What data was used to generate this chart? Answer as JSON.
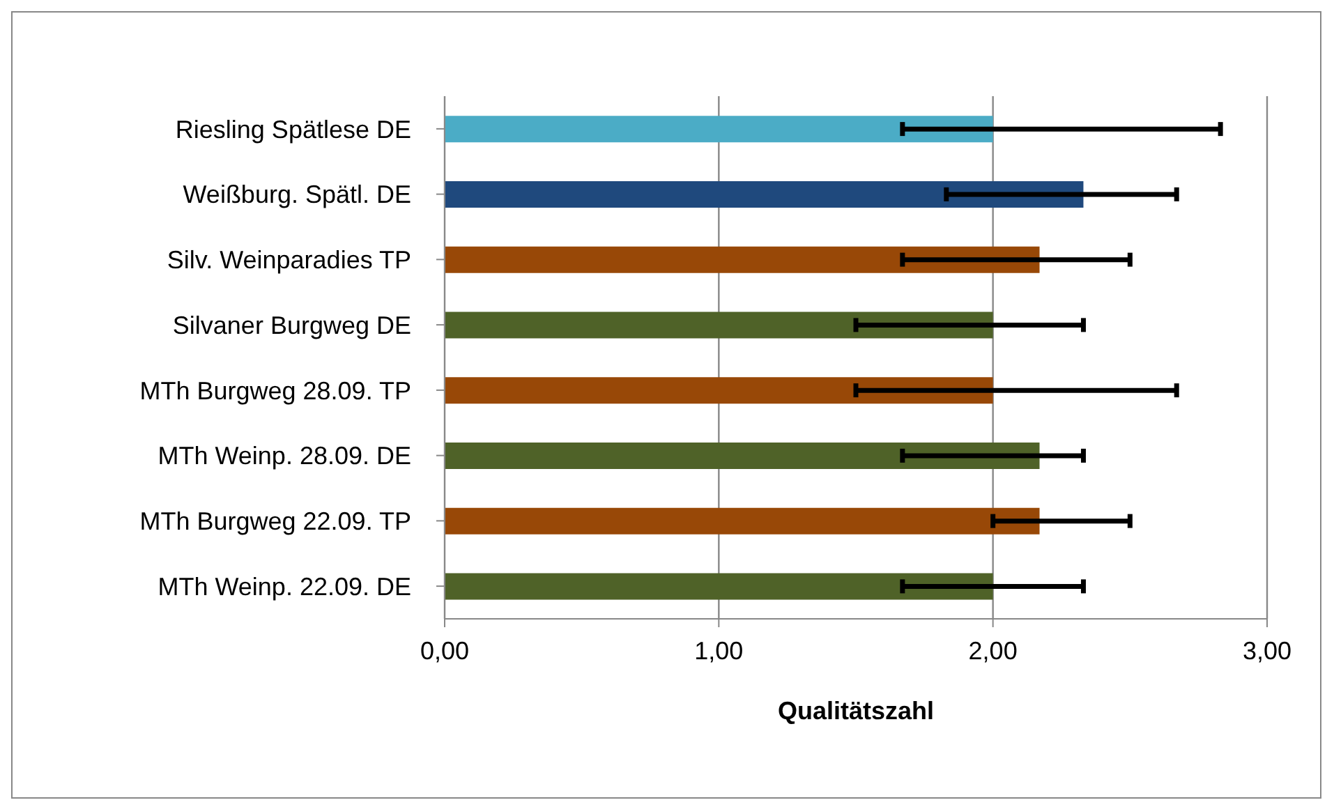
{
  "chart_data": {
    "type": "bar",
    "orientation": "horizontal",
    "xlabel": "Qualitätszahl",
    "categories": [
      "Riesling Spätlese DE",
      "Weißburg. Spätl.  DE",
      "Silv. Weinparadies TP",
      "Silvaner  Burgweg  DE",
      "MTh Burgweg 28.09. TP",
      "MTh Weinp.  28.09.  DE",
      "MTh Burgweg 22.09. TP",
      "MTh Weinp.   22.09. DE"
    ],
    "values": [
      2.0,
      2.33,
      2.17,
      2.0,
      2.0,
      2.17,
      2.17,
      2.0
    ],
    "colors": [
      "#4bacc6",
      "#1f497d",
      "#984807",
      "#4f6228",
      "#984807",
      "#4f6228",
      "#984807",
      "#4f6228"
    ],
    "errors": [
      [
        1.67,
        2.83
      ],
      [
        1.83,
        2.67
      ],
      [
        1.67,
        2.5
      ],
      [
        1.5,
        2.33
      ],
      [
        1.5,
        2.67
      ],
      [
        1.67,
        2.33
      ],
      [
        2.0,
        2.5
      ],
      [
        1.67,
        2.33
      ]
    ],
    "xlim": [
      0,
      3
    ],
    "xticks": [
      {
        "value": 0,
        "label": "0,00"
      },
      {
        "value": 1,
        "label": "1,00"
      },
      {
        "value": 2,
        "label": "2,00"
      },
      {
        "value": 3,
        "label": "3,00"
      }
    ],
    "grid": "x"
  }
}
